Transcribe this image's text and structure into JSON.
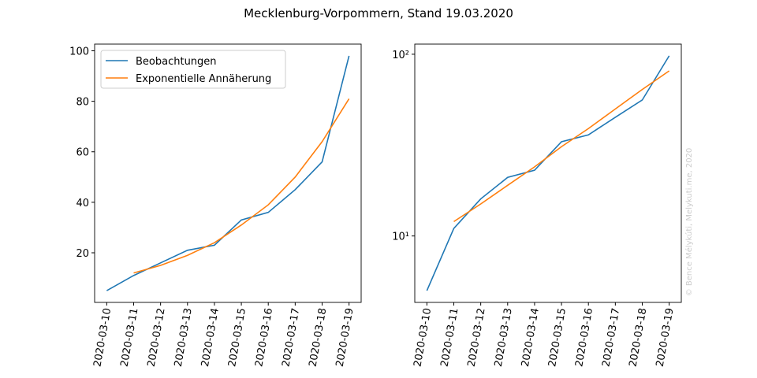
{
  "title": "Mecklenburg-Vorpommern, Stand 19.03.2020",
  "watermark": "© Bence Mélykúti, Melykuti.me, 2020",
  "chart_data": [
    {
      "type": "line",
      "log_scale": false,
      "legend": "upper left",
      "categories": [
        "2020-03-10",
        "2020-03-11",
        "2020-03-12",
        "2020-03-13",
        "2020-03-14",
        "2020-03-15",
        "2020-03-16",
        "2020-03-17",
        "2020-03-18",
        "2020-03-19"
      ],
      "series": [
        {
          "name": "Beobachtungen",
          "color": "#1f77b4",
          "values": [
            5,
            11,
            16,
            21,
            23,
            33,
            36,
            45,
            56,
            98
          ]
        },
        {
          "name": "Exponentielle Annäherung",
          "color": "#ff7f0e",
          "values": [
            null,
            12,
            15,
            19,
            24,
            31,
            39,
            50,
            64,
            81
          ]
        }
      ],
      "ylim": [
        0.35,
        102.65
      ],
      "yticks": [
        20,
        40,
        60,
        80,
        100
      ]
    },
    {
      "type": "line",
      "log_scale": true,
      "categories": [
        "2020-03-10",
        "2020-03-11",
        "2020-03-12",
        "2020-03-13",
        "2020-03-14",
        "2020-03-15",
        "2020-03-16",
        "2020-03-17",
        "2020-03-18",
        "2020-03-19"
      ],
      "series": [
        {
          "color": "#1f77b4",
          "values": [
            5,
            11,
            16,
            21,
            23,
            33,
            36,
            45,
            56,
            98
          ]
        },
        {
          "color": "#ff7f0e",
          "values": [
            null,
            12,
            15,
            19,
            24,
            31,
            39,
            50,
            64,
            81
          ]
        }
      ],
      "ylim": [
        4.31,
        113.7
      ],
      "yticks": [
        {
          "value": 10,
          "label": "10¹"
        },
        {
          "value": 100,
          "label": "10²"
        }
      ]
    }
  ]
}
